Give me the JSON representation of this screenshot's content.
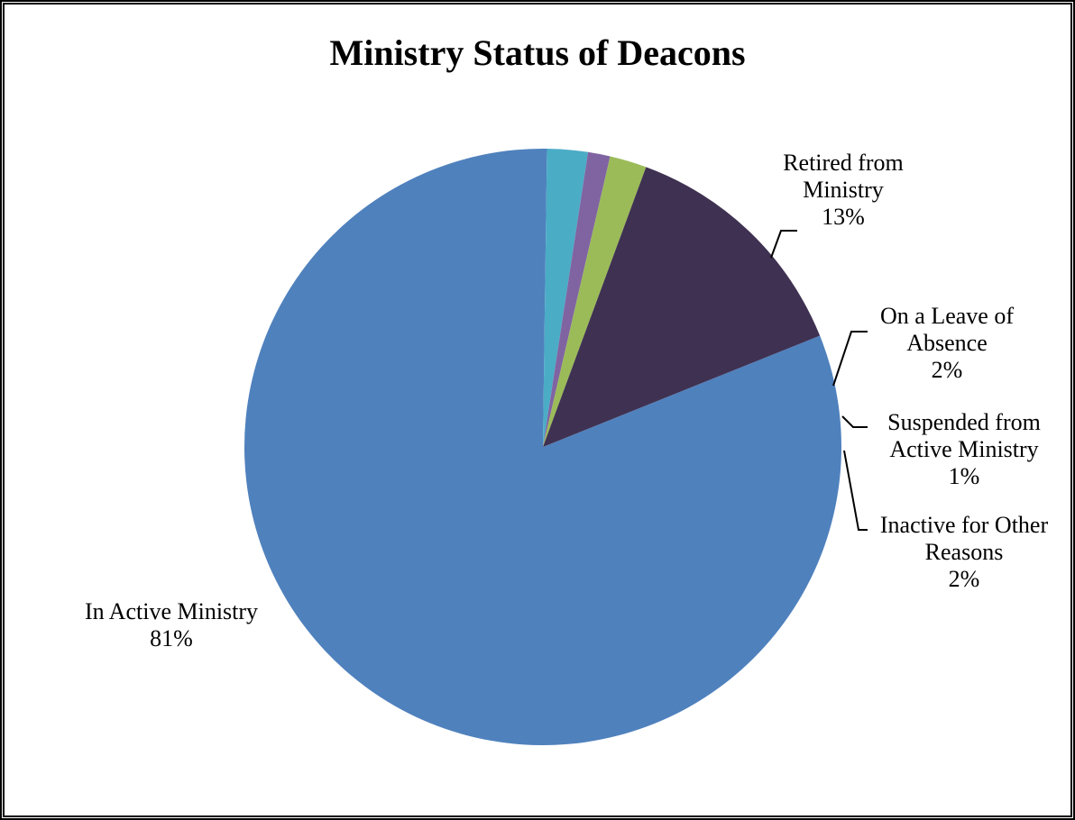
{
  "chart_data": {
    "type": "pie",
    "title": "Ministry Status of Deacons",
    "slices": [
      {
        "label_lines": [
          "In Active Ministry"
        ],
        "pct_label": "81%",
        "value": 81.3,
        "color": "#4f81bd"
      },
      {
        "label_lines": [
          "Inactive for Other",
          "Reasons"
        ],
        "pct_label": "2%",
        "value": 2.2,
        "color": "#4bacc6"
      },
      {
        "label_lines": [
          "Suspended from",
          "Active Ministry"
        ],
        "pct_label": "1%",
        "value": 1.2,
        "color": "#8064a2"
      },
      {
        "label_lines": [
          "On a Leave of",
          "Absence"
        ],
        "pct_label": "2%",
        "value": 2.0,
        "color": "#9bbb59"
      },
      {
        "label_lines": [
          "Retired from",
          "Ministry"
        ],
        "pct_label": "13%",
        "value": 13.3,
        "color": "#3f3151"
      }
    ],
    "legend": "none"
  }
}
